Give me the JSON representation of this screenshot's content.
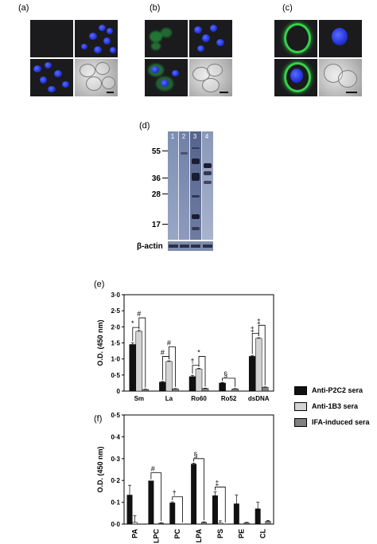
{
  "panels": {
    "a": "(a)",
    "b": "(b)",
    "c": "(c)",
    "d": "(d)",
    "e": "(e)",
    "f": "(f)"
  },
  "blot": {
    "lanes": [
      "1",
      "2",
      "3",
      "4"
    ],
    "mw_markers": [
      "55",
      "36",
      "28",
      "17"
    ],
    "loading_control": "β-actin"
  },
  "legend": {
    "items": [
      {
        "label": "Anti-P2C2 sera",
        "color": "#111111"
      },
      {
        "label": "Anti-1B3 sera",
        "color": "#d3d3d3"
      },
      {
        "label": "IFA-induced sera",
        "color": "#808080"
      }
    ]
  },
  "chart_data": [
    {
      "panel": "(e)",
      "type": "bar",
      "ylabel": "O.D. (450 nm)",
      "ylim": [
        0,
        3.0
      ],
      "yticks": [
        "0",
        "0·5",
        "1·0",
        "1·5",
        "2·0",
        "2·5",
        "3·0"
      ],
      "categories": [
        "Sm",
        "La",
        "Ro60",
        "Ro52",
        "dsDNA"
      ],
      "series": [
        {
          "name": "Anti-P2C2 sera",
          "values": [
            1.45,
            0.28,
            0.45,
            0.25,
            1.08
          ],
          "err": [
            0.05,
            0.02,
            0.04,
            0.02,
            0.02
          ]
        },
        {
          "name": "Anti-1B3 sera",
          "values": [
            1.86,
            0.92,
            0.69,
            0.0,
            1.64
          ],
          "err": [
            0.03,
            0.02,
            0.02,
            0.0,
            0.02
          ]
        },
        {
          "name": "IFA-induced sera",
          "values": [
            0.05,
            0.07,
            0.08,
            0.07,
            0.12
          ],
          "err": [
            0.01,
            0.01,
            0.01,
            0.01,
            0.01
          ]
        }
      ],
      "significance": [
        "*",
        "#",
        "#",
        "#",
        "†",
        "*",
        "§",
        "‡",
        "‡"
      ]
    },
    {
      "panel": "(f)",
      "type": "bar",
      "ylabel": "O.D. (450 nm)",
      "ylim": [
        0,
        0.5
      ],
      "yticks": [
        "0·0",
        "0·1",
        "0·2",
        "0·3",
        "0·4",
        "0·5"
      ],
      "categories": [
        "PA",
        "LPC",
        "PC",
        "LPA",
        "PS",
        "PE",
        "CL"
      ],
      "series": [
        {
          "name": "Anti-P2C2 sera",
          "values": [
            0.133,
            0.198,
            0.097,
            0.275,
            0.13,
            0.093,
            0.07
          ],
          "err": [
            0.045,
            0.0,
            0.005,
            0.004,
            0.017,
            0.04,
            0.03
          ]
        },
        {
          "name": "Anti-1B3 sera",
          "values": [
            0.008,
            0.0,
            0.0,
            0.0,
            0.005,
            0.0,
            0.0
          ],
          "err": [
            0.03,
            0.0,
            0.0,
            0.0,
            0.01,
            0.0,
            0.0
          ]
        },
        {
          "name": "IFA-induced sera",
          "values": [
            0.0,
            0.004,
            0.0,
            0.008,
            0.0,
            0.006,
            0.013
          ],
          "err": [
            0.0,
            0.002,
            0.0,
            0.002,
            0.0,
            0.002,
            0.004
          ]
        }
      ],
      "significance": [
        "#",
        "†",
        "§",
        "‡"
      ]
    }
  ]
}
